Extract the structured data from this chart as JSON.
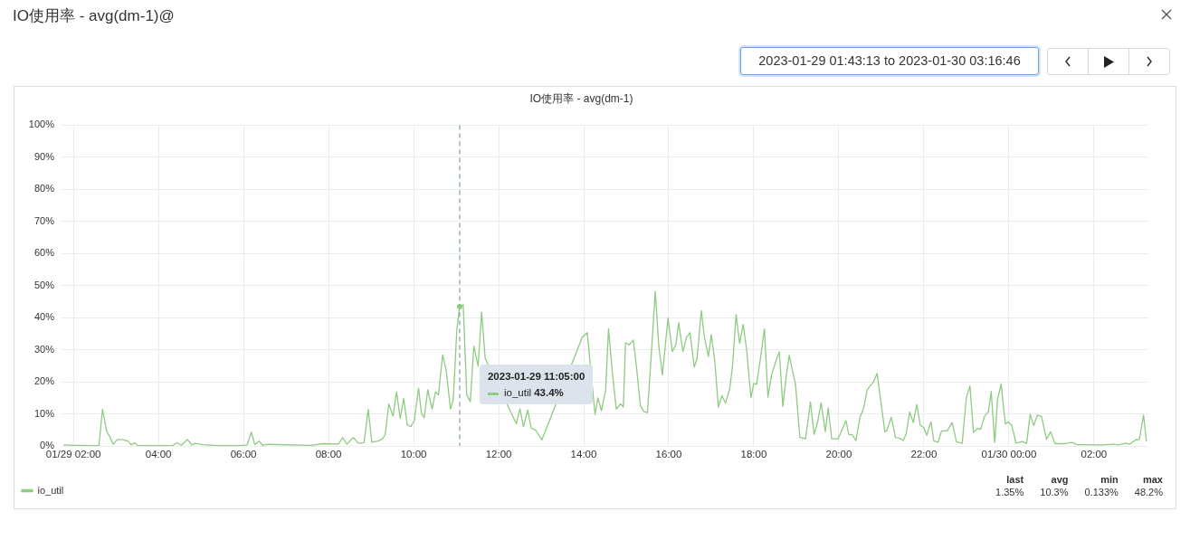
{
  "chart_data": {
    "type": "line",
    "title": "IO使用率 - avg(dm-1)",
    "x": [
      "2023-01-29T01:46",
      "2023-01-29T02:00",
      "2023-01-29T02:36",
      "2023-01-29T02:41",
      "2023-01-29T02:47",
      "2023-01-29T02:51",
      "2023-01-29T02:56",
      "2023-01-29T03:02",
      "2023-01-29T03:09",
      "2023-01-29T03:17",
      "2023-01-29T03:22",
      "2023-01-29T03:26",
      "2023-01-29T03:31",
      "2023-01-29T04:20",
      "2023-01-29T04:26",
      "2023-01-29T04:32",
      "2023-01-29T04:41",
      "2023-01-29T04:47",
      "2023-01-29T04:52",
      "2023-01-29T05:02",
      "2023-01-29T05:24",
      "2023-01-29T05:53",
      "2023-01-29T06:05",
      "2023-01-29T06:11",
      "2023-01-29T06:16",
      "2023-01-29T06:22",
      "2023-01-29T06:27",
      "2023-01-29T06:34",
      "2023-01-29T07:35",
      "2023-01-29T07:53",
      "2023-01-29T08:14",
      "2023-01-29T08:20",
      "2023-01-29T08:26",
      "2023-01-29T08:35",
      "2023-01-29T08:42",
      "2023-01-29T08:50",
      "2023-01-29T08:56",
      "2023-01-29T09:01",
      "2023-01-29T09:10",
      "2023-01-29T09:16",
      "2023-01-29T09:20",
      "2023-01-29T09:25",
      "2023-01-29T09:31",
      "2023-01-29T09:36",
      "2023-01-29T09:41",
      "2023-01-29T09:46",
      "2023-01-29T09:51",
      "2023-01-29T09:56",
      "2023-01-29T10:01",
      "2023-01-29T10:07",
      "2023-01-29T10:11",
      "2023-01-29T10:15",
      "2023-01-29T10:20",
      "2023-01-29T10:26",
      "2023-01-29T10:31",
      "2023-01-29T10:35",
      "2023-01-29T10:41",
      "2023-01-29T10:46",
      "2023-01-29T10:52",
      "2023-01-29T10:56",
      "2023-01-29T11:01",
      "2023-01-29T11:05",
      "2023-01-29T11:10",
      "2023-01-29T11:15",
      "2023-01-29T11:20",
      "2023-01-29T11:25",
      "2023-01-29T11:31",
      "2023-01-29T11:36",
      "2023-01-29T11:41",
      "2023-01-29T12:25",
      "2023-01-29T12:30",
      "2023-01-29T12:35",
      "2023-01-29T12:41",
      "2023-01-29T12:46",
      "2023-01-29T12:52",
      "2023-01-29T13:01",
      "2023-01-29T13:58",
      "2023-01-29T14:05",
      "2023-01-29T14:16",
      "2023-01-29T14:20",
      "2023-01-29T14:25",
      "2023-01-29T14:31",
      "2023-01-29T14:35",
      "2023-01-29T14:41",
      "2023-01-29T14:46",
      "2023-01-29T14:52",
      "2023-01-29T14:56",
      "2023-01-29T14:59",
      "2023-01-29T15:04",
      "2023-01-29T15:10",
      "2023-01-29T15:15",
      "2023-01-29T15:20",
      "2023-01-29T15:25",
      "2023-01-29T15:30",
      "2023-01-29T15:35",
      "2023-01-29T15:41",
      "2023-01-29T15:46",
      "2023-01-29T15:51",
      "2023-01-29T15:59",
      "2023-01-29T16:05",
      "2023-01-29T16:10",
      "2023-01-29T16:14",
      "2023-01-29T16:20",
      "2023-01-29T16:25",
      "2023-01-29T16:30",
      "2023-01-29T16:36",
      "2023-01-29T16:40",
      "2023-01-29T16:46",
      "2023-01-29T16:50",
      "2023-01-29T16:56",
      "2023-01-29T17:00",
      "2023-01-29T17:05",
      "2023-01-29T17:10",
      "2023-01-29T17:15",
      "2023-01-29T17:20",
      "2023-01-29T17:26",
      "2023-01-29T17:30",
      "2023-01-29T17:35",
      "2023-01-29T17:40",
      "2023-01-29T17:45",
      "2023-01-29T17:50",
      "2023-01-29T17:56",
      "2023-01-29T18:00",
      "2023-01-29T18:04",
      "2023-01-29T18:10",
      "2023-01-29T18:15",
      "2023-01-29T18:20",
      "2023-01-29T18:25",
      "2023-01-29T18:31",
      "2023-01-29T18:36",
      "2023-01-29T18:41",
      "2023-01-29T18:46",
      "2023-01-29T18:50",
      "2023-01-29T18:59",
      "2023-01-29T19:05",
      "2023-01-29T19:13",
      "2023-01-29T19:20",
      "2023-01-29T19:25",
      "2023-01-29T19:30",
      "2023-01-29T19:35",
      "2023-01-29T19:41",
      "2023-01-29T19:45",
      "2023-01-29T19:50",
      "2023-01-29T19:59",
      "2023-01-29T20:10",
      "2023-01-29T20:14",
      "2023-01-29T20:19",
      "2023-01-29T20:24",
      "2023-01-29T20:30",
      "2023-01-29T20:35",
      "2023-01-29T20:40",
      "2023-01-29T20:49",
      "2023-01-29T20:54",
      "2023-01-29T21:05",
      "2023-01-29T21:08",
      "2023-01-29T21:14",
      "2023-01-29T21:20",
      "2023-01-29T21:25",
      "2023-01-29T21:31",
      "2023-01-29T21:35",
      "2023-01-29T21:40",
      "2023-01-29T21:45",
      "2023-01-29T21:50",
      "2023-01-29T21:55",
      "2023-01-29T22:00",
      "2023-01-29T22:04",
      "2023-01-29T22:10",
      "2023-01-29T22:14",
      "2023-01-29T22:20",
      "2023-01-29T22:25",
      "2023-01-29T22:33",
      "2023-01-29T22:40",
      "2023-01-29T22:46",
      "2023-01-29T22:54",
      "2023-01-29T23:00",
      "2023-01-29T23:05",
      "2023-01-29T23:10",
      "2023-01-29T23:16",
      "2023-01-29T23:20",
      "2023-01-29T23:26",
      "2023-01-29T23:31",
      "2023-01-29T23:35",
      "2023-01-29T23:40",
      "2023-01-29T23:44",
      "2023-01-29T23:49",
      "2023-01-29T23:55",
      "2023-01-29T23:59",
      "2023-01-30T00:04",
      "2023-01-30T00:10",
      "2023-01-30T00:19",
      "2023-01-30T00:25",
      "2023-01-30T00:30",
      "2023-01-30T00:35",
      "2023-01-30T00:40",
      "2023-01-30T00:46",
      "2023-01-30T00:53",
      "2023-01-30T00:59",
      "2023-01-30T01:05",
      "2023-01-30T01:17",
      "2023-01-30T01:22",
      "2023-01-30T01:29",
      "2023-01-30T01:36",
      "2023-01-30T01:49",
      "2023-01-30T02:10",
      "2023-01-30T02:27",
      "2023-01-30T02:35",
      "2023-01-30T02:46",
      "2023-01-30T02:50",
      "2023-01-30T02:59",
      "2023-01-30T03:04",
      "2023-01-30T03:10",
      "2023-01-30T03:14"
    ],
    "series": [
      {
        "name": "io_util",
        "color": "#8fcb82",
        "values": [
          0.3,
          0.2,
          0.1,
          11.4,
          4.5,
          3,
          0.5,
          2,
          2,
          1.5,
          0.3,
          1,
          0.1,
          0.1,
          1,
          0.2,
          2,
          0.3,
          0.8,
          0.4,
          0.1,
          0.1,
          0.3,
          4.3,
          0.4,
          1.5,
          0.2,
          0.5,
          0.2,
          0.7,
          0.6,
          2.6,
          0.6,
          2.6,
          0.8,
          1,
          11.4,
          1.2,
          1.5,
          2.2,
          3.6,
          13.1,
          9.3,
          16.9,
          8.6,
          14.8,
          6.6,
          6,
          7.9,
          18,
          10.2,
          8.8,
          17.5,
          11.5,
          16.9,
          15.9,
          28.4,
          23.5,
          11.5,
          14.5,
          36.3,
          43.4,
          44,
          15.9,
          13.8,
          31.1,
          24.9,
          41.7,
          27.3,
          6.9,
          11.6,
          6,
          11.2,
          5.5,
          5,
          1.9,
          33.9,
          35.3,
          9.8,
          15,
          11,
          17.3,
          36.5,
          21.6,
          11.5,
          13.1,
          12.1,
          32.2,
          31.5,
          33,
          23.5,
          12.6,
          10.7,
          10.4,
          27.3,
          48.2,
          31.1,
          22.1,
          39.9,
          29.4,
          31.5,
          38.4,
          29.4,
          33.9,
          35.3,
          24.6,
          27.3,
          42.2,
          34.4,
          27.9,
          34.7,
          26.3,
          12.1,
          15.7,
          13.3,
          17.8,
          24.9,
          41,
          32,
          37.9,
          29.9,
          15,
          19.5,
          19.2,
          28.2,
          36.5,
          15.2,
          22.1,
          26.3,
          29.4,
          12.3,
          22.1,
          28.2,
          18.9,
          2.7,
          2.2,
          13.7,
          3.6,
          7.4,
          13.4,
          4.5,
          11.9,
          2.2,
          2.2,
          7.9,
          3.6,
          3.4,
          1.7,
          9,
          11.8,
          17.5,
          20,
          22.6,
          4.4,
          4.9,
          9,
          2.6,
          2.5,
          1.7,
          3.8,
          10.6,
          7.3,
          12.9,
          6.4,
          5.7,
          3.3,
          7.5,
          1.6,
          1.1,
          4.7,
          4.7,
          7.3,
          1.3,
          0.8,
          15.1,
          18.7,
          4.2,
          5.4,
          5.2,
          9.4,
          10.6,
          17,
          1.1,
          14.6,
          19.3,
          6.8,
          7.5,
          6.4,
          0.9,
          1.4,
          0.8,
          9.9,
          6.3,
          9.6,
          9.2,
          2.1,
          4.4,
          0.7,
          0.7,
          0.9,
          1.1,
          0.4,
          0.4,
          0.3,
          0.5,
          0.3,
          0.9,
          0.5,
          1.9,
          2.1,
          9.6,
          1.4
        ]
      }
    ],
    "xlim": [
      "2023-01-29T01:43:13",
      "2023-01-30T03:16:46"
    ],
    "xticks": [
      {
        "value": "2023-01-29T02:00",
        "label": "01/29 02:00"
      },
      {
        "value": "2023-01-29T04:00",
        "label": "04:00"
      },
      {
        "value": "2023-01-29T06:00",
        "label": "06:00"
      },
      {
        "value": "2023-01-29T08:00",
        "label": "08:00"
      },
      {
        "value": "2023-01-29T10:00",
        "label": "10:00"
      },
      {
        "value": "2023-01-29T12:00",
        "label": "12:00"
      },
      {
        "value": "2023-01-29T14:00",
        "label": "14:00"
      },
      {
        "value": "2023-01-29T16:00",
        "label": "16:00"
      },
      {
        "value": "2023-01-29T18:00",
        "label": "18:00"
      },
      {
        "value": "2023-01-29T20:00",
        "label": "20:00"
      },
      {
        "value": "2023-01-29T22:00",
        "label": "22:00"
      },
      {
        "value": "2023-01-30T00:00",
        "label": "01/30 00:00"
      },
      {
        "value": "2023-01-30T02:00",
        "label": "02:00"
      }
    ],
    "ylim": [
      0,
      100
    ],
    "yticks": [
      {
        "value": 0,
        "label": "0%"
      },
      {
        "value": 10,
        "label": "10%"
      },
      {
        "value": 20,
        "label": "20%"
      },
      {
        "value": 30,
        "label": "30%"
      },
      {
        "value": 40,
        "label": "40%"
      },
      {
        "value": 50,
        "label": "50%"
      },
      {
        "value": 60,
        "label": "60%"
      },
      {
        "value": 70,
        "label": "70%"
      },
      {
        "value": 80,
        "label": "80%"
      },
      {
        "value": 90,
        "label": "90%"
      },
      {
        "value": 100,
        "label": "100%"
      }
    ],
    "grid": true,
    "legend": "bottom left",
    "marker": "none",
    "line_style": "solid",
    "ref_lines": [
      {
        "axis": "x",
        "value": "2023-01-29T11:05",
        "color": "#5a8aa6",
        "line_style": "dashed"
      }
    ],
    "annotations": [
      "IO使用率 - avg(dm-1)@",
      "2023-01-29 01:43:13 to 2023-01-30 03:16:46",
      "2023-01-29 11:05:00",
      "io_util 43.4%",
      "last",
      "avg",
      "min",
      "max",
      "1.35%",
      "10.3%",
      "0.133%",
      "48.2%"
    ]
  }
}
